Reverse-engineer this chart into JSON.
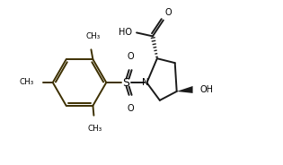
{
  "bg_color": "#ffffff",
  "bond_color": "#1a1a1a",
  "ring_color": "#3d3000",
  "line_width": 1.4,
  "fig_width": 3.15,
  "fig_height": 1.84,
  "dpi": 100,
  "xlim": [
    0,
    3.15
  ],
  "ylim": [
    0,
    1.84
  ]
}
